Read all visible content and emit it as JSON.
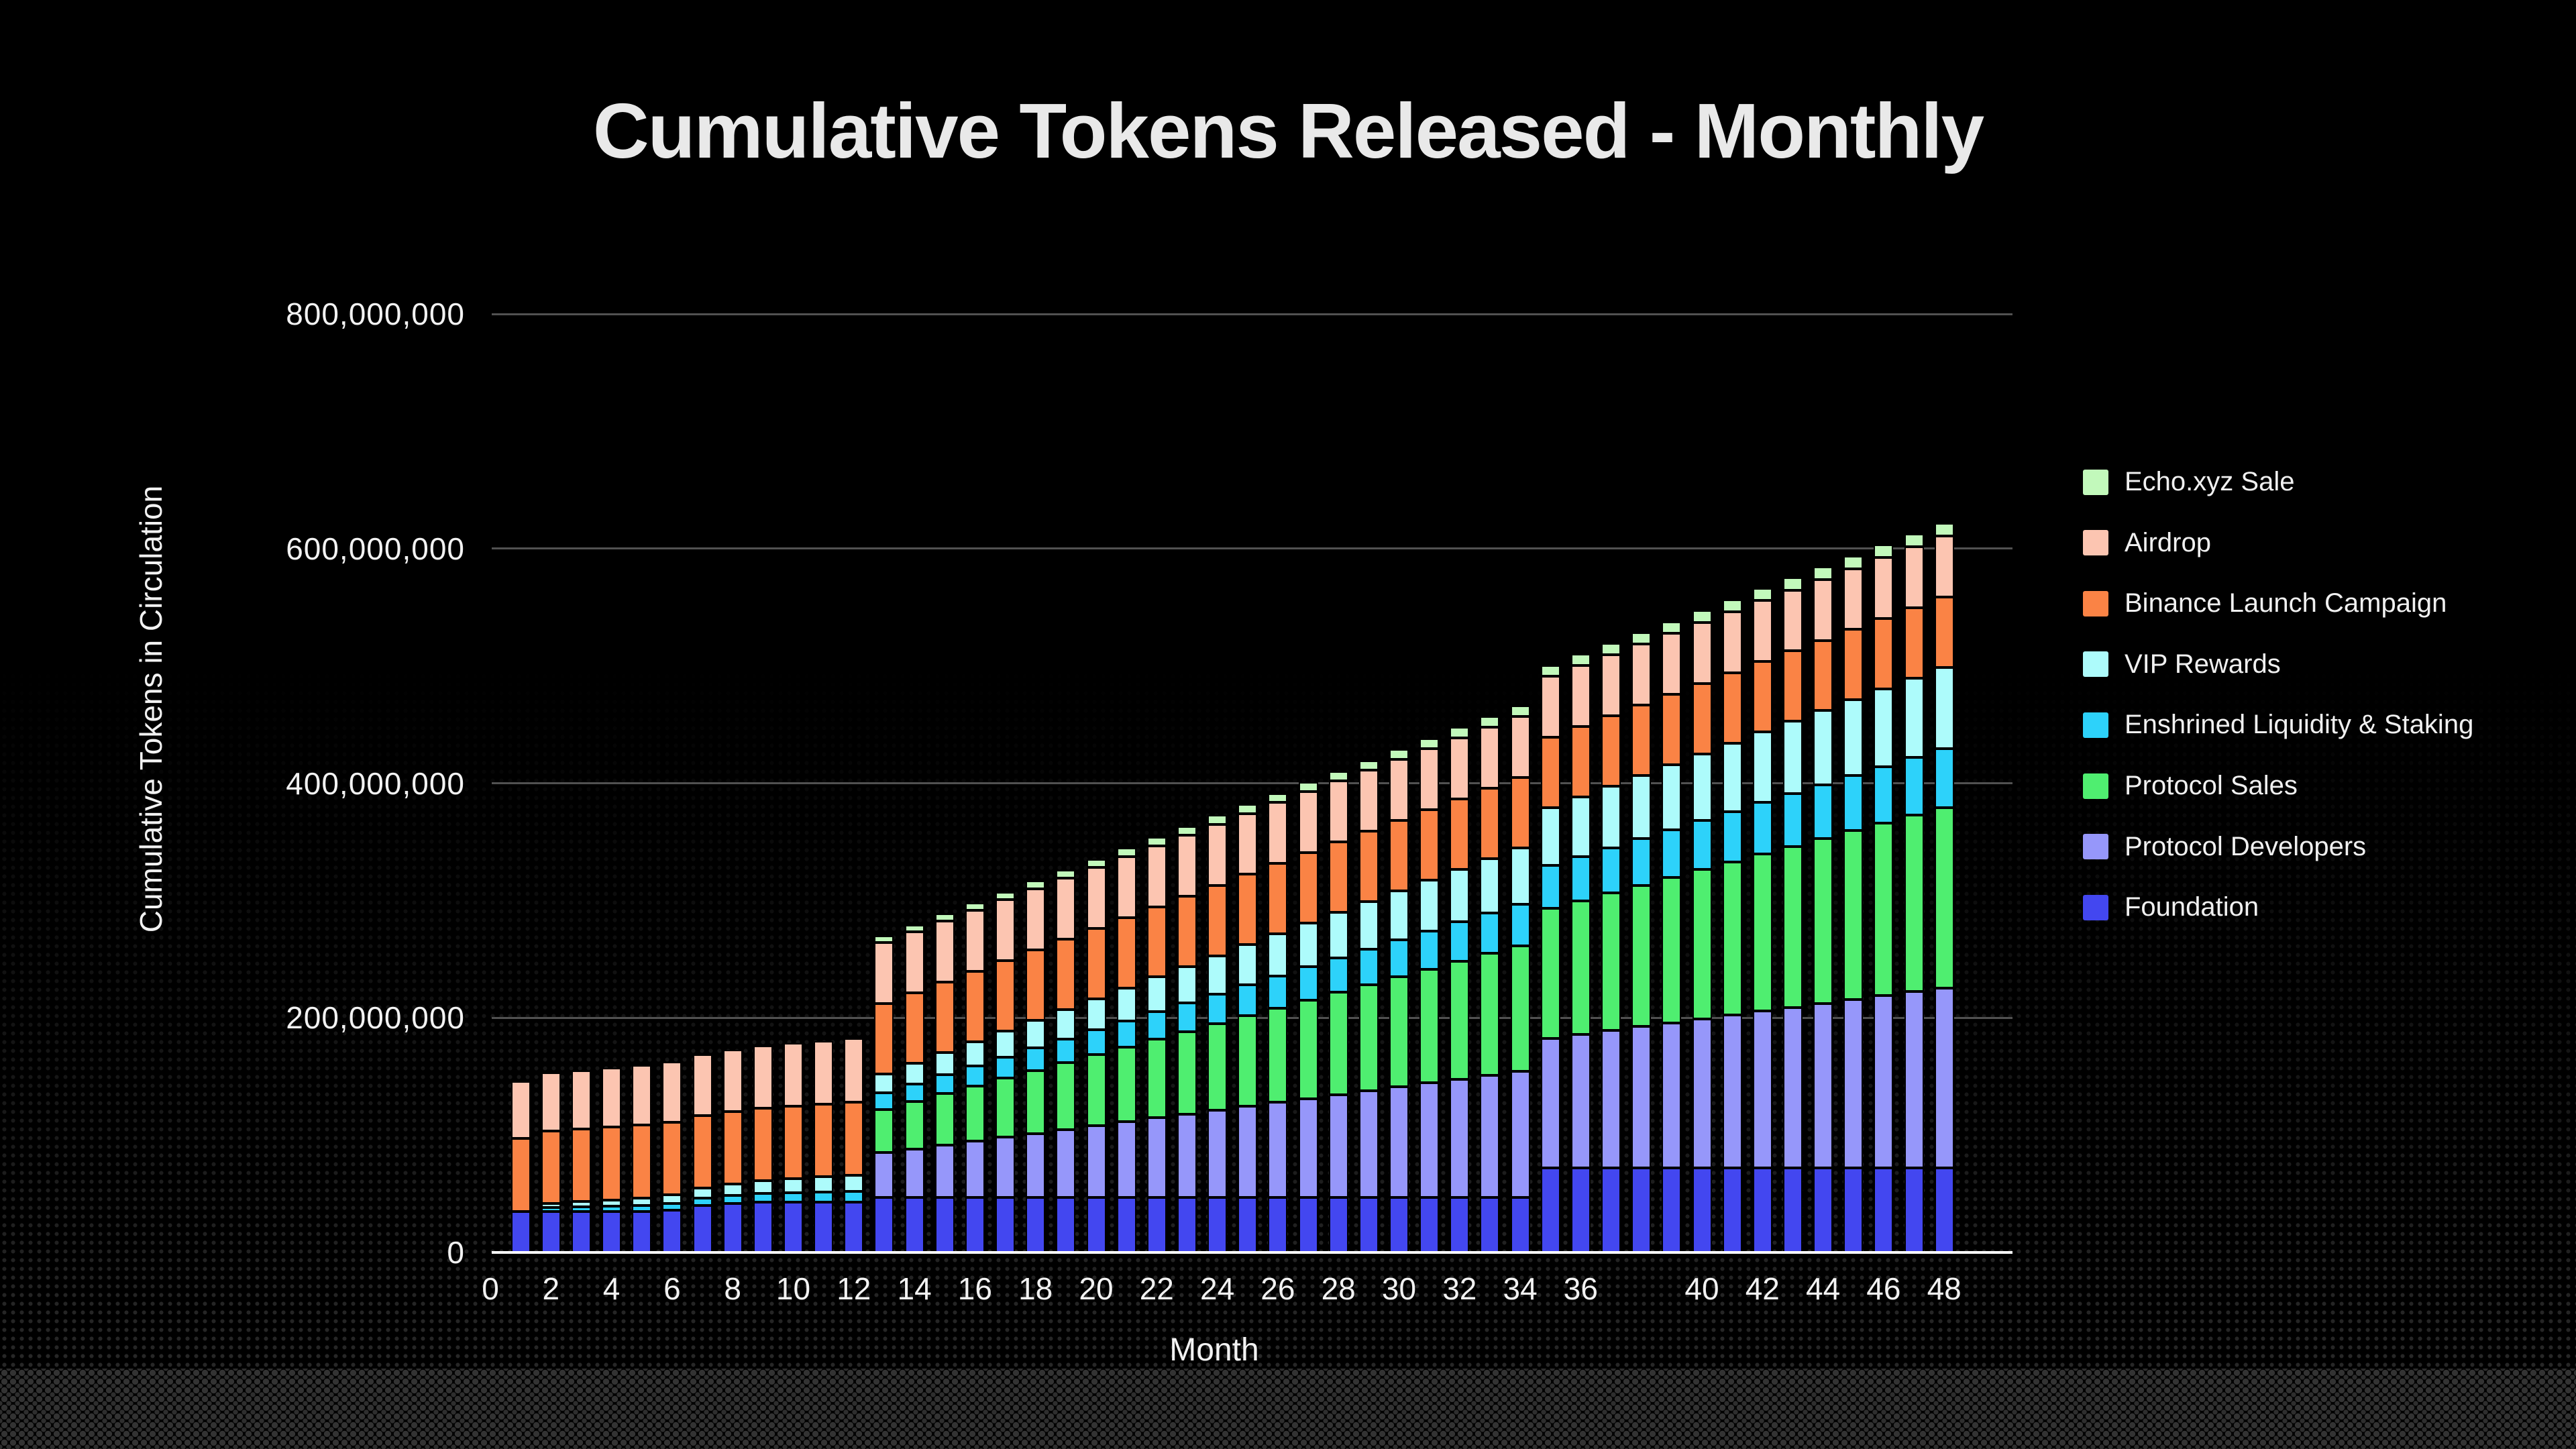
{
  "colors": {
    "background": "#000000",
    "grid": "#515151",
    "baseline": "#ffffff",
    "text": "#f2f2f2",
    "dots": "#2b2b2b"
  },
  "chart_data": {
    "type": "bar",
    "stacked": true,
    "title": "Cumulative Tokens Released - Monthly",
    "xlabel": "Month",
    "ylabel": "Cumulative Tokens in Circulation",
    "ylim": [
      0,
      800000000
    ],
    "grid": true,
    "legend_position": "right",
    "values_unit": "millions_of_tokens",
    "y_tick_values": [
      0,
      200000000,
      400000000,
      600000000,
      800000000
    ],
    "y_tick_labels": [
      "0",
      "200,000,000",
      "400,000,000",
      "600,000,000",
      "800,000,000"
    ],
    "x_tick_labels": [
      0,
      2,
      4,
      6,
      8,
      10,
      12,
      14,
      16,
      18,
      20,
      22,
      24,
      26,
      28,
      30,
      32,
      34,
      36,
      40,
      42,
      44,
      46,
      48
    ],
    "months": [
      1,
      2,
      3,
      4,
      5,
      6,
      7,
      8,
      9,
      10,
      11,
      12,
      13,
      14,
      15,
      16,
      17,
      18,
      19,
      20,
      21,
      22,
      23,
      24,
      25,
      26,
      27,
      28,
      29,
      30,
      31,
      32,
      33,
      34,
      35,
      36,
      37,
      38,
      39,
      40,
      41,
      42,
      43,
      44,
      45,
      46,
      47,
      48
    ],
    "legend_order_top_to_bottom": [
      "Echo.xyz Sale",
      "Airdrop",
      "Binance Launch Campaign",
      "VIP Rewards",
      "Enshrined Liquidity & Staking",
      "Protocol Sales",
      "Protocol Developers",
      "Foundation"
    ],
    "series": [
      {
        "name": "Foundation",
        "color": "#4347f0",
        "values": [
          35,
          35,
          35,
          35,
          35,
          36,
          40,
          42,
          43,
          43,
          43,
          43,
          47,
          47,
          47,
          47,
          47,
          47,
          47,
          47,
          47,
          47,
          47,
          47,
          47,
          47,
          47,
          47,
          47,
          47,
          47,
          47,
          47,
          47,
          72,
          72,
          72,
          72,
          72,
          72,
          72,
          72,
          72,
          72,
          72,
          72,
          72,
          72
        ]
      },
      {
        "name": "Protocol Developers",
        "color": "#9697fa",
        "values": [
          0,
          0,
          0,
          0,
          0,
          0,
          0,
          0,
          0,
          0,
          0,
          0,
          38,
          41.3,
          44.6,
          47.9,
          51.2,
          54.5,
          57.8,
          61.1,
          64.4,
          67.7,
          71,
          74.3,
          77.6,
          80.9,
          84.2,
          87.5,
          90.8,
          94.1,
          97.4,
          100.7,
          104,
          107.3,
          110.6,
          113.9,
          117.2,
          120.5,
          123.8,
          127.1,
          130.4,
          133.7,
          137,
          140.3,
          143.6,
          146.9,
          150.2,
          153.5
        ]
      },
      {
        "name": "Protocol Sales",
        "color": "#4fee70",
        "values": [
          0,
          0,
          0,
          0,
          0,
          0,
          0,
          0,
          0,
          0,
          0,
          0,
          37,
          40.3,
          43.7,
          47,
          50.4,
          53.7,
          57,
          60.4,
          63.7,
          67.1,
          70.4,
          73.7,
          77.1,
          80.4,
          83.8,
          87.1,
          90.4,
          93.8,
          97.1,
          100.5,
          103.8,
          107.1,
          110.5,
          113.8,
          117.2,
          120.5,
          123.8,
          127.2,
          130.5,
          133.9,
          137.2,
          140.5,
          143.9,
          147.2,
          150.6,
          153.9
        ]
      },
      {
        "name": "Enshrined Liquidity & Staking",
        "color": "#2dd2fa",
        "values": [
          0,
          3.5,
          4.1,
          4.6,
          5.2,
          5.7,
          6.3,
          6.8,
          7.4,
          7.9,
          8.5,
          9,
          14,
          15,
          16.1,
          17.1,
          18.1,
          19.2,
          20.2,
          21.2,
          22.2,
          23.3,
          24.3,
          25.3,
          26.4,
          27.4,
          28.4,
          29.4,
          30.5,
          31.5,
          32.5,
          33.6,
          34.6,
          35.6,
          36.7,
          37.7,
          38.7,
          39.7,
          40.8,
          41.8,
          42.8,
          43.9,
          44.9,
          45.9,
          46.9,
          48,
          49,
          50
        ]
      },
      {
        "name": "VIP Rewards",
        "color": "#adfbfb",
        "values": [
          0,
          3,
          4.1,
          5.2,
          6.3,
          7.4,
          8.5,
          9.6,
          10.7,
          11.8,
          12.9,
          14,
          16,
          17.5,
          19,
          20.6,
          22.1,
          23.6,
          25.1,
          26.6,
          28.2,
          29.7,
          31.2,
          32.7,
          34.2,
          35.8,
          37.3,
          38.8,
          40.3,
          41.8,
          43.4,
          44.9,
          46.4,
          47.9,
          49.4,
          51,
          52.5,
          54,
          55.5,
          57,
          58.6,
          60.1,
          61.6,
          63.1,
          64.6,
          66.2,
          67.7,
          69.2
        ]
      },
      {
        "name": "Binance Launch Campaign",
        "color": "#fa8345",
        "values": [
          62,
          62,
          62,
          62,
          62,
          62,
          62,
          62,
          62,
          62,
          62,
          62,
          60,
          60,
          60,
          60,
          60,
          60,
          60,
          60,
          60,
          60,
          60,
          60,
          60,
          60,
          60,
          60,
          60,
          60,
          60,
          60,
          60,
          60,
          60,
          60,
          60,
          60,
          60,
          60,
          60,
          60,
          60,
          60,
          60,
          60,
          60,
          60
        ]
      },
      {
        "name": "Airdrop",
        "color": "#fcc5b1",
        "values": [
          49,
          49.5,
          50,
          50.5,
          51,
          51.5,
          52,
          52.5,
          53,
          53.5,
          54,
          54.5,
          52,
          52,
          52,
          52,
          52,
          52,
          52,
          52,
          52,
          52,
          52,
          52,
          52,
          52,
          52,
          52,
          52,
          52,
          52,
          52,
          52,
          52,
          52,
          52,
          52,
          52,
          52,
          52,
          52,
          52,
          52,
          52,
          52,
          52,
          52,
          52
        ]
      },
      {
        "name": "Echo.xyz Sale",
        "color": "#c2f9bb",
        "values": [
          0,
          0,
          0,
          0,
          0,
          0,
          0,
          0,
          0,
          0,
          0,
          0,
          6,
          6.15,
          6.3,
          6.45,
          6.6,
          6.75,
          6.9,
          7.05,
          7.2,
          7.35,
          7.5,
          7.65,
          7.8,
          7.95,
          8.1,
          8.25,
          8.4,
          8.55,
          8.7,
          8.85,
          9,
          9.15,
          9.3,
          9.45,
          9.6,
          9.75,
          9.9,
          10.05,
          10.2,
          10.35,
          10.5,
          10.65,
          10.8,
          10.95,
          11.1,
          11.25
        ]
      }
    ]
  }
}
